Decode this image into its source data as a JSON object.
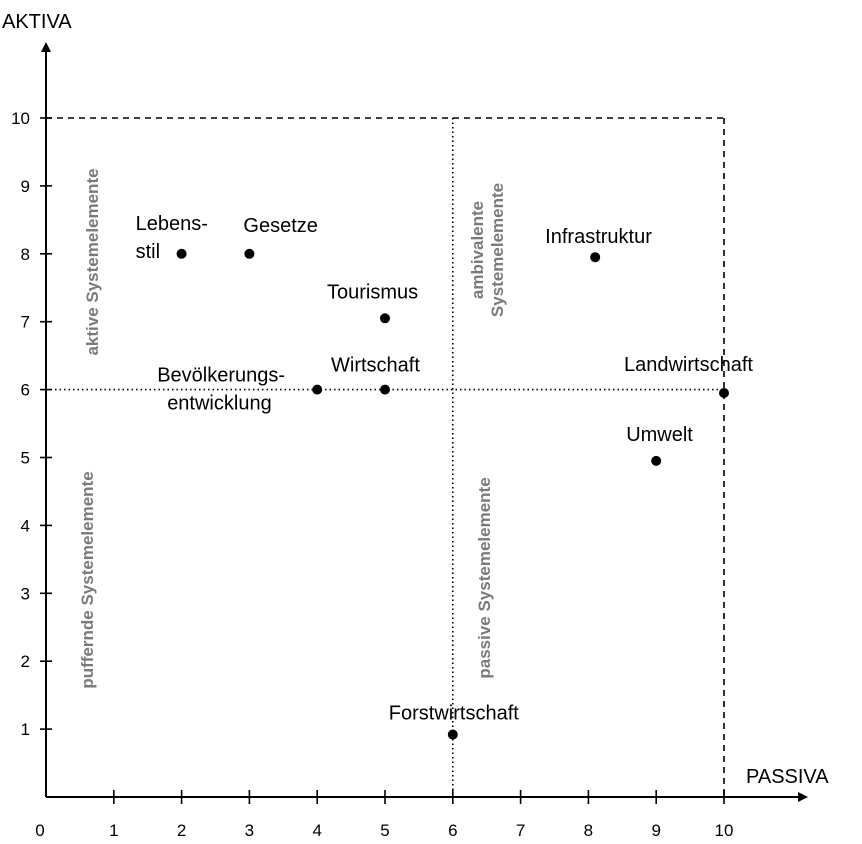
{
  "chart_data": {
    "type": "scatter",
    "xlabel": "PASSIVA",
    "ylabel": "AKTIVA",
    "xlim": [
      0,
      10
    ],
    "ylim": [
      0,
      10
    ],
    "xticks": [
      "0",
      "1",
      "2",
      "3",
      "4",
      "5",
      "6",
      "7",
      "8",
      "9",
      "10"
    ],
    "yticks": [
      "1",
      "2",
      "3",
      "4",
      "5",
      "6",
      "7",
      "8",
      "9",
      "10"
    ],
    "divider_x": 6,
    "divider_y": 6,
    "points": [
      {
        "label_lines": [
          "Lebens-",
          "stil"
        ],
        "x": 2,
        "y": 8
      },
      {
        "label_lines": [
          "Gesetze"
        ],
        "x": 3,
        "y": 8
      },
      {
        "label_lines": [
          "Infrastruktur"
        ],
        "x": 8.1,
        "y": 7.95
      },
      {
        "label_lines": [
          "Tourismus"
        ],
        "x": 5,
        "y": 7.05
      },
      {
        "label_lines": [
          "Bevölkerungs-",
          "entwicklung"
        ],
        "x": 4,
        "y": 6
      },
      {
        "label_lines": [
          "Wirtschaft"
        ],
        "x": 5,
        "y": 6
      },
      {
        "label_lines": [
          "Landwirtschaft"
        ],
        "x": 10,
        "y": 5.95
      },
      {
        "label_lines": [
          "Umwelt"
        ],
        "x": 9,
        "y": 4.95
      },
      {
        "label_lines": [
          "Forstwirtschaft"
        ],
        "x": 6,
        "y": 0.92
      }
    ],
    "quadrants": [
      {
        "key": "aktive",
        "lines": [
          "aktive Systemelemente"
        ]
      },
      {
        "key": "ambivalente",
        "lines": [
          "ambivalente",
          "Systemelemente"
        ]
      },
      {
        "key": "puffernde",
        "lines": [
          "puffernde Systemelemente"
        ]
      },
      {
        "key": "passive",
        "lines": [
          "passive Systemelemente"
        ]
      }
    ]
  }
}
